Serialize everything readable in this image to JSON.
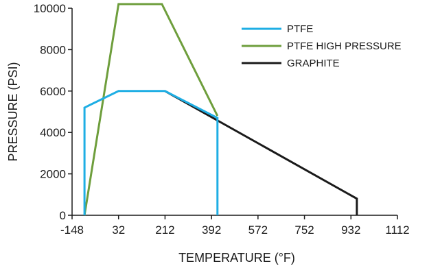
{
  "chart_data": {
    "type": "line",
    "xlabel": "TEMPERATURE (°F)",
    "ylabel": "PRESSURE (PSI)",
    "xlim": [
      -148,
      1112
    ],
    "ylim": [
      0,
      10000
    ],
    "x_ticks": [
      -148,
      32,
      212,
      392,
      572,
      752,
      932,
      1112
    ],
    "x_tick_labels": [
      "-148",
      "32",
      "212",
      "392",
      "572",
      "752",
      "932",
      "1112"
    ],
    "y_ticks": [
      0,
      2000,
      4000,
      6000,
      8000,
      10000
    ],
    "y_tick_labels": [
      "0",
      "2000",
      "4000",
      "6000",
      "8000",
      "10000"
    ],
    "grid": false,
    "legend_position": "top-right",
    "series": [
      {
        "name": "PTFE",
        "color": "#1eaee4",
        "points": [
          [
            -100,
            0
          ],
          [
            -100,
            5200
          ],
          [
            32,
            6000
          ],
          [
            212,
            6000
          ],
          [
            415,
            4700
          ],
          [
            415,
            0
          ]
        ]
      },
      {
        "name": "PTFE HIGH PRESSURE",
        "color": "#6e9e3c",
        "points": [
          [
            -100,
            0
          ],
          [
            32,
            10200
          ],
          [
            200,
            10200
          ],
          [
            415,
            4800
          ]
        ]
      },
      {
        "name": "GRAPHITE",
        "color": "#1a1a1a",
        "points": [
          [
            212,
            6000
          ],
          [
            955,
            800
          ],
          [
            955,
            0
          ]
        ]
      }
    ]
  }
}
